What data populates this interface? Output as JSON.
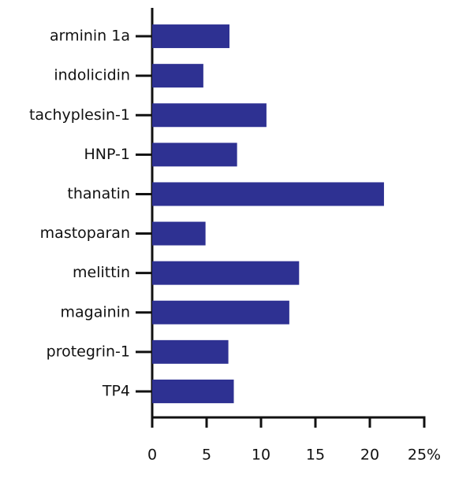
{
  "chart_data": {
    "type": "hbar",
    "categories": [
      "arminin 1a",
      "indolicidin",
      "tachyplesin-1",
      "HNP-1",
      "thanatin",
      "mastoparan",
      "melittin",
      "magainin",
      "protegrin-1",
      "TP4"
    ],
    "values": [
      7.1,
      4.7,
      10.5,
      7.8,
      21.3,
      4.9,
      13.5,
      12.6,
      7.0,
      7.5
    ],
    "color": "#2e3192",
    "xlim": [
      0,
      25
    ],
    "xticks": [
      0,
      5,
      10,
      15,
      20,
      {
        "value": 25,
        "label": "25%"
      }
    ]
  }
}
